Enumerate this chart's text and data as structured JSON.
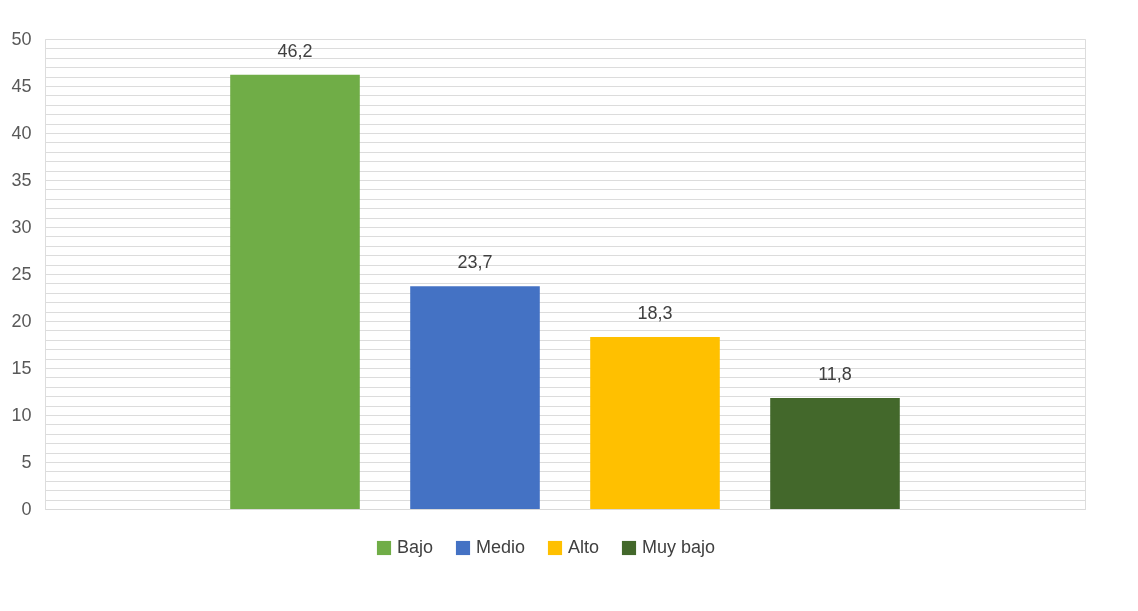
{
  "chart_data": {
    "type": "bar",
    "categories": [
      null
    ],
    "series": [
      {
        "name": "Bajo",
        "color": "#70ad47",
        "values": [
          46.2
        ],
        "value_labels": [
          "46,2"
        ]
      },
      {
        "name": "Medio",
        "color": "#4472c4",
        "values": [
          23.7
        ],
        "value_labels": [
          "23,7"
        ]
      },
      {
        "name": "Alto",
        "color": "#ffc000",
        "values": [
          18.3
        ],
        "value_labels": [
          "18,3"
        ]
      },
      {
        "name": "Muy bajo",
        "color": "#43682b",
        "values": [
          11.8
        ],
        "value_labels": [
          "11,8"
        ]
      }
    ],
    "ylim": [
      0,
      50
    ],
    "yticks": [
      0,
      {
        "value": 1,
        "label": null
      },
      {
        "value": 2,
        "label": null
      },
      {
        "value": 3,
        "label": null
      },
      {
        "value": 4,
        "label": null
      },
      5,
      {
        "value": 6,
        "label": null
      },
      {
        "value": 7,
        "label": null
      },
      {
        "value": 8,
        "label": null
      },
      {
        "value": 9,
        "label": null
      },
      10,
      {
        "value": 11,
        "label": null
      },
      {
        "value": 12,
        "label": null
      },
      {
        "value": 13,
        "label": null
      },
      {
        "value": 14,
        "label": null
      },
      15,
      {
        "value": 16,
        "label": null
      },
      {
        "value": 17,
        "label": null
      },
      {
        "value": 18,
        "label": null
      },
      {
        "value": 19,
        "label": null
      },
      20,
      {
        "value": 21,
        "label": null
      },
      {
        "value": 22,
        "label": null
      },
      {
        "value": 23,
        "label": null
      },
      {
        "value": 24,
        "label": null
      },
      25,
      {
        "value": 26,
        "label": null
      },
      {
        "value": 27,
        "label": null
      },
      {
        "value": 28,
        "label": null
      },
      {
        "value": 29,
        "label": null
      },
      30,
      {
        "value": 31,
        "label": null
      },
      {
        "value": 32,
        "label": null
      },
      {
        "value": 33,
        "label": null
      },
      {
        "value": 34,
        "label": null
      },
      35,
      {
        "value": 36,
        "label": null
      },
      {
        "value": 37,
        "label": null
      },
      {
        "value": 38,
        "label": null
      },
      {
        "value": 39,
        "label": null
      },
      40,
      {
        "value": 41,
        "label": null
      },
      {
        "value": 42,
        "label": null
      },
      {
        "value": 43,
        "label": null
      },
      {
        "value": 44,
        "label": null
      },
      45,
      {
        "value": 46,
        "label": null
      },
      {
        "value": 47,
        "label": null
      },
      {
        "value": 48,
        "label": null
      },
      {
        "value": 49,
        "label": null
      },
      50
    ],
    "grid": "y",
    "legend": "bottom"
  }
}
